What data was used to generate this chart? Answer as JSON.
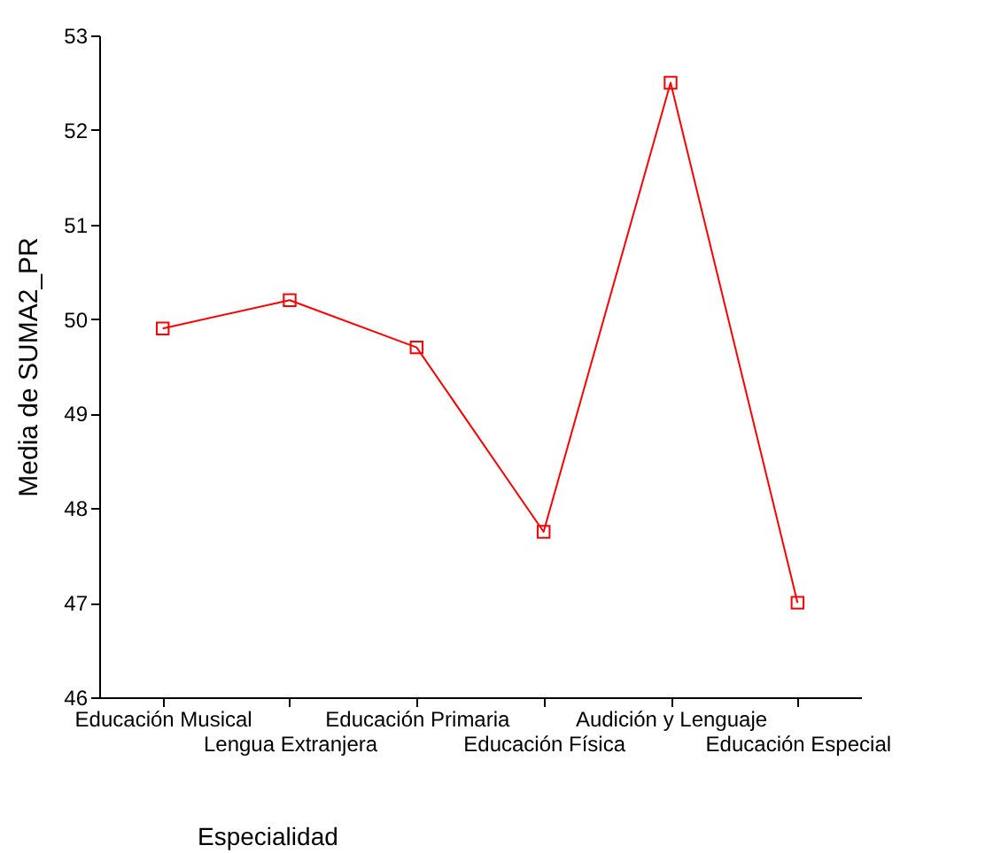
{
  "chart_data": {
    "type": "line",
    "xlabel": "Especialidad",
    "ylabel": "Media de SUMA2_PR",
    "categories": [
      "Educación Musical",
      "Lengua Extranjera",
      "Educación Primaria",
      "Educación Física",
      "Audición y Lenguaje",
      "Educación Especial"
    ],
    "series": [
      {
        "color": "#ff0000",
        "values": [
          49.9,
          50.2,
          49.7,
          47.75,
          52.5,
          47.0
        ]
      }
    ],
    "ylim": [
      46,
      53
    ],
    "yticks": [
      46,
      47,
      48,
      49,
      50,
      51,
      52,
      53
    ],
    "grid": false,
    "legend": false,
    "marker": "square",
    "line_style": "solid"
  }
}
